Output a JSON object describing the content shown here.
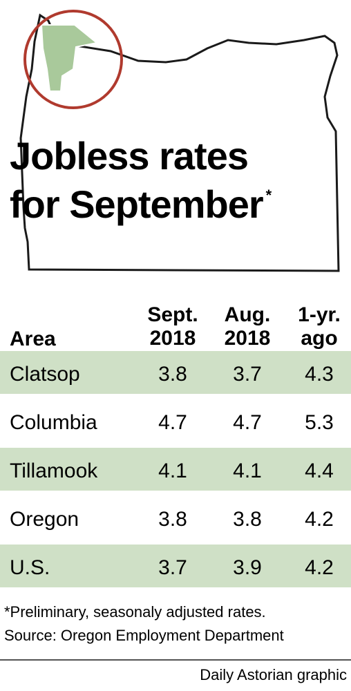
{
  "title": {
    "lines": [
      "Jobless rates",
      "for September"
    ],
    "mark": "*"
  },
  "table": {
    "header": {
      "area": "Area",
      "columns": [
        [
          "Sept.",
          "2018"
        ],
        [
          "Aug.",
          "2018"
        ],
        [
          "1-yr.",
          "ago"
        ]
      ]
    },
    "rows": [
      [
        "Clatsop",
        "3.8",
        "3.7",
        "4.3"
      ],
      [
        "Columbia",
        "4.7",
        "4.7",
        "5.3"
      ],
      [
        "Tillamook",
        "4.1",
        "4.1",
        "4.4"
      ],
      [
        "Oregon",
        "3.8",
        "3.8",
        "4.2"
      ],
      [
        "U.S.",
        "3.7",
        "3.9",
        "4.2"
      ]
    ]
  },
  "footnotes": [
    "*Preliminary, seasonaly adjusted rates.",
    "Source: Oregon Employment Department"
  ],
  "credit": "Daily Astorian graphic"
}
